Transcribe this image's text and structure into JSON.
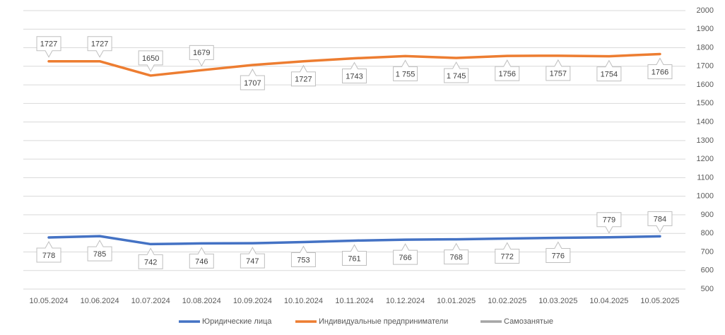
{
  "chart_data": {
    "type": "line",
    "categories": [
      "10.05.2024",
      "10.06.2024",
      "10.07.2024",
      "10.08.2024",
      "10.09.2024",
      "10.10.2024",
      "10.11.2024",
      "10.12.2024",
      "10.01.2025",
      "10.02.2025",
      "10.03.2025",
      "10.04.2025",
      "10.05.2025"
    ],
    "series": [
      {
        "name": "Юридические лица",
        "color": "#4472c4",
        "values": [
          778,
          785,
          742,
          746,
          747,
          753,
          761,
          766,
          768,
          772,
          776,
          779,
          784
        ]
      },
      {
        "name": "Индивидуальные предприниматели",
        "color": "#ed7d31",
        "values": [
          1727,
          1727,
          1650,
          1679,
          1707,
          1727,
          1743,
          1755,
          1745,
          1756,
          1757,
          1754,
          1766
        ],
        "value_labels": [
          "1727",
          "1727",
          "1650",
          "1679",
          "1707",
          "1727",
          "1743",
          "1 755",
          "1 745",
          "1756",
          "1757",
          "1754",
          "1766"
        ]
      },
      {
        "name": "Самозанятые",
        "color": "#a5a5a5",
        "values": [
          null,
          null,
          null,
          null,
          null,
          null,
          null,
          null,
          null,
          null,
          null,
          null,
          null
        ]
      }
    ],
    "ylim": [
      500,
      2000
    ],
    "yticks": [
      500,
      600,
      700,
      800,
      900,
      1000,
      1100,
      1200,
      1300,
      1400,
      1500,
      1600,
      1700,
      1800,
      1900,
      2000
    ],
    "grid": true,
    "y_axis_side": "right",
    "legend": "bottom"
  }
}
